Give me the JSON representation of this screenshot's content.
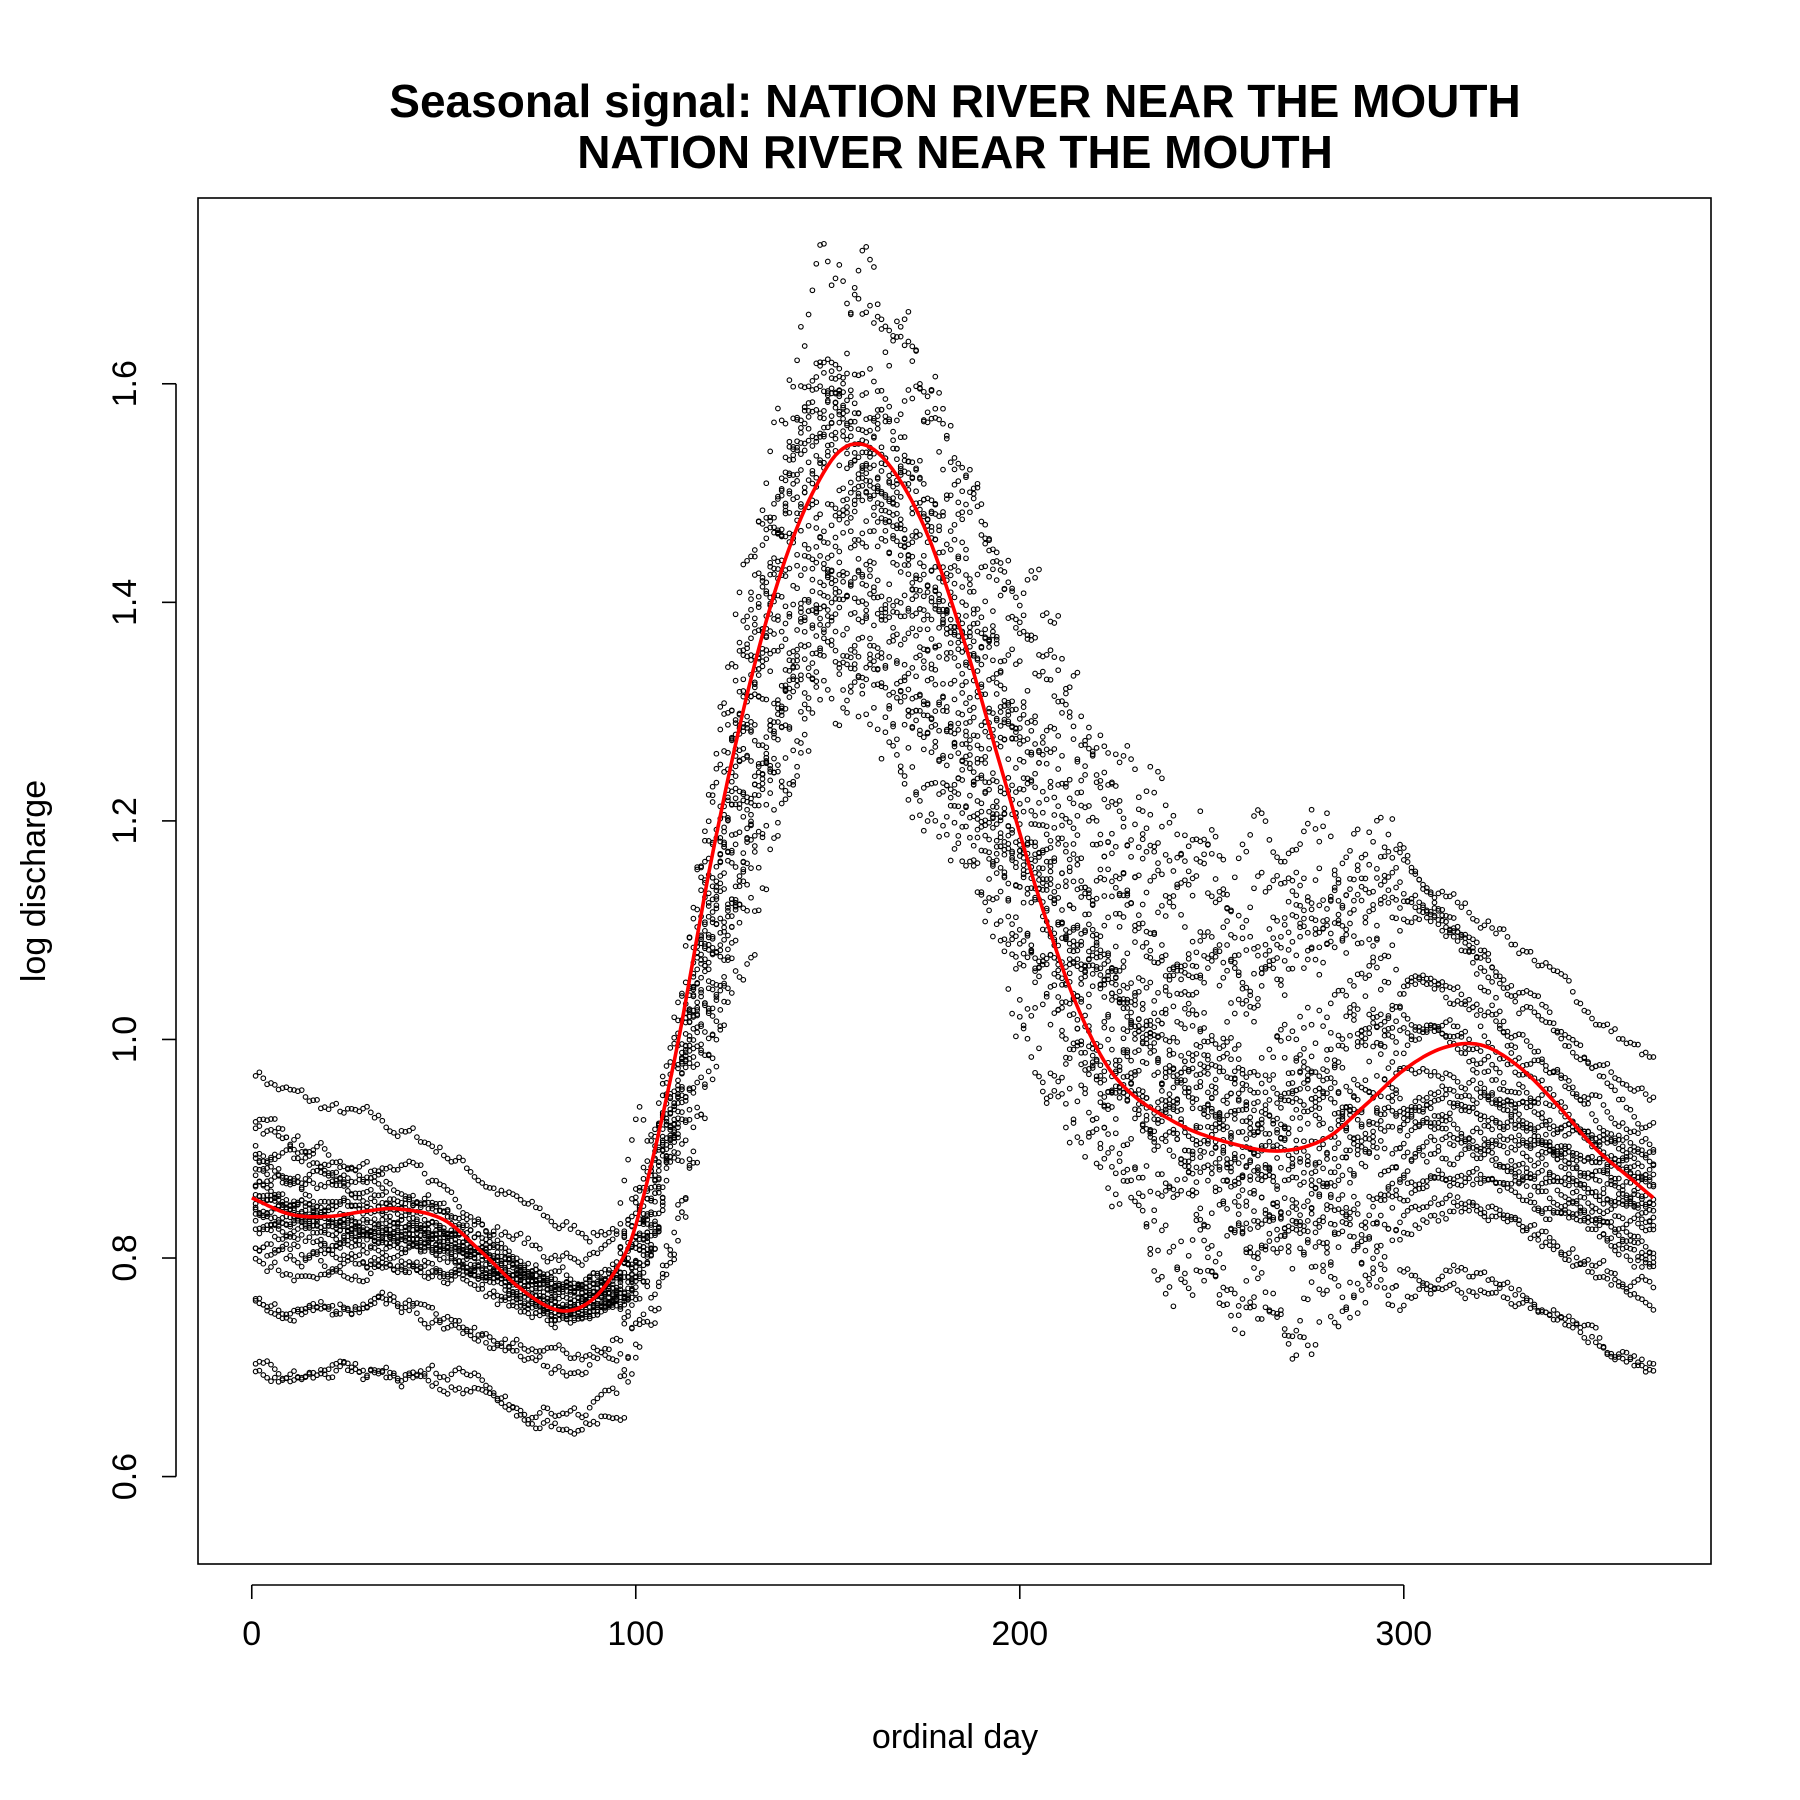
{
  "chart_data": {
    "type": "scatter",
    "title": "Seasonal signal: NATION RIVER NEAR THE MOUTH",
    "subtitle": "NATION RIVER NEAR THE MOUTH",
    "xlabel": "ordinal day",
    "ylabel": "log discharge",
    "xlim": [
      -14,
      380
    ],
    "ylim": [
      0.52,
      1.77
    ],
    "x_ticks": [
      0,
      100,
      200,
      300
    ],
    "y_ticks": [
      0.6,
      0.8,
      1.0,
      1.2,
      1.4,
      1.6
    ],
    "grid": false,
    "legend": "none",
    "colors": {
      "points": "#000000",
      "fit": "#ff0000"
    },
    "point_style": "open-circle",
    "n_years": 24,
    "series": [
      {
        "kind": "observed daily values (one trace per year)",
        "year_traces": [
          {
            "y_start": 0.98,
            "y_low": 0.77,
            "y_mid": 1.62,
            "y_end": 0.98,
            "peak_day": 148,
            "peak": 1.7,
            "fall_bump": 0.0
          },
          {
            "y_start": 0.93,
            "y_low": 0.76,
            "y_mid": 1.5,
            "y_end": 0.95,
            "peak_day": 155,
            "peak": 1.68,
            "fall_bump": 0.05
          },
          {
            "y_start": 0.92,
            "y_low": 0.74,
            "y_mid": 1.48,
            "y_end": 0.93,
            "peak_day": 160,
            "peak": 1.74,
            "fall_bump": 0.1
          },
          {
            "y_start": 0.91,
            "y_low": 0.73,
            "y_mid": 1.4,
            "y_end": 0.9,
            "peak_day": 143,
            "peak": 1.6,
            "fall_bump": 0.0
          },
          {
            "y_start": 0.9,
            "y_low": 0.72,
            "y_mid": 1.3,
            "y_end": 0.89,
            "peak_day": 150,
            "peak": 1.55,
            "fall_bump": 0.22
          },
          {
            "y_start": 0.89,
            "y_low": 0.75,
            "y_mid": 1.2,
            "y_end": 0.88,
            "peak_day": 158,
            "peak": 1.65,
            "fall_bump": 0.28
          },
          {
            "y_start": 0.89,
            "y_low": 0.72,
            "y_mid": 1.15,
            "y_end": 0.87,
            "peak_day": 145,
            "peak": 1.57,
            "fall_bump": 0.15
          },
          {
            "y_start": 0.88,
            "y_low": 0.71,
            "y_mid": 1.1,
            "y_end": 0.86,
            "peak_day": 152,
            "peak": 1.52,
            "fall_bump": 0.08
          },
          {
            "y_start": 0.87,
            "y_low": 0.73,
            "y_mid": 1.05,
            "y_end": 0.86,
            "peak_day": 162,
            "peak": 1.48,
            "fall_bump": 0.0
          },
          {
            "y_start": 0.86,
            "y_low": 0.74,
            "y_mid": 1.0,
            "y_end": 0.85,
            "peak_day": 140,
            "peak": 1.45,
            "fall_bump": 0.05
          },
          {
            "y_start": 0.86,
            "y_low": 0.77,
            "y_mid": 0.98,
            "y_end": 0.85,
            "peak_day": 157,
            "peak": 1.6,
            "fall_bump": 0.12
          },
          {
            "y_start": 0.85,
            "y_low": 0.75,
            "y_mid": 0.95,
            "y_end": 0.84,
            "peak_day": 149,
            "peak": 1.5,
            "fall_bump": 0.0
          },
          {
            "y_start": 0.85,
            "y_low": 0.78,
            "y_mid": 0.93,
            "y_end": 0.84,
            "peak_day": 165,
            "peak": 1.42,
            "fall_bump": 0.18
          },
          {
            "y_start": 0.84,
            "y_low": 0.76,
            "y_mid": 0.9,
            "y_end": 0.83,
            "peak_day": 138,
            "peak": 1.38,
            "fall_bump": 0.0
          },
          {
            "y_start": 0.84,
            "y_low": 0.79,
            "y_mid": 0.88,
            "y_end": 0.83,
            "peak_day": 153,
            "peak": 1.55,
            "fall_bump": 0.06
          },
          {
            "y_start": 0.83,
            "y_low": 0.77,
            "y_mid": 0.86,
            "y_end": 0.82,
            "peak_day": 160,
            "peak": 1.46,
            "fall_bump": 0.0
          },
          {
            "y_start": 0.82,
            "y_low": 0.8,
            "y_mid": 0.84,
            "y_end": 0.8,
            "peak_day": 147,
            "peak": 1.4,
            "fall_bump": 0.0
          },
          {
            "y_start": 0.81,
            "y_low": 0.78,
            "y_mid": 0.82,
            "y_end": 0.79,
            "peak_day": 156,
            "peak": 1.35,
            "fall_bump": 0.1
          },
          {
            "y_start": 0.8,
            "y_low": 0.78,
            "y_mid": 0.8,
            "y_end": 0.79,
            "peak_day": 150,
            "peak": 1.32,
            "fall_bump": 0.0
          },
          {
            "y_start": 0.79,
            "y_low": 0.79,
            "y_mid": 0.78,
            "y_end": 0.79,
            "peak_day": 159,
            "peak": 1.44,
            "fall_bump": 0.0
          },
          {
            "y_start": 0.76,
            "y_low": 0.72,
            "y_mid": 0.77,
            "y_end": 0.76,
            "peak_day": 146,
            "peak": 1.3,
            "fall_bump": 0.0
          },
          {
            "y_start": 0.76,
            "y_low": 0.74,
            "y_mid": 0.75,
            "y_end": 0.76,
            "peak_day": 163,
            "peak": 1.28,
            "fall_bump": 0.0
          },
          {
            "y_start": 0.69,
            "y_low": 0.7,
            "y_mid": 0.68,
            "y_end": 0.69,
            "peak_day": 151,
            "peak": 1.26,
            "fall_bump": 0.0
          },
          {
            "y_start": 0.69,
            "y_low": 0.68,
            "y_mid": 0.62,
            "y_end": 0.68,
            "peak_day": 155,
            "peak": 1.33,
            "fall_bump": 0.0
          }
        ]
      },
      {
        "kind": "seasonal fit (red line)",
        "x": [
          0,
          10,
          20,
          30,
          38,
          50,
          60,
          70,
          80,
          88,
          95,
          100,
          110,
          120,
          130,
          140,
          150,
          157,
          165,
          175,
          185,
          195,
          205,
          215,
          225,
          240,
          255,
          268,
          280,
          290,
          300,
          310,
          320,
          330,
          340,
          350,
          360,
          365
        ],
        "y": [
          0.855,
          0.84,
          0.838,
          0.843,
          0.845,
          0.835,
          0.805,
          0.772,
          0.752,
          0.76,
          0.79,
          0.83,
          0.98,
          1.17,
          1.33,
          1.45,
          1.525,
          1.545,
          1.53,
          1.47,
          1.37,
          1.25,
          1.13,
          1.03,
          0.965,
          0.925,
          0.905,
          0.898,
          0.91,
          0.94,
          0.972,
          0.992,
          0.995,
          0.975,
          0.94,
          0.9,
          0.87,
          0.855
        ]
      }
    ]
  }
}
